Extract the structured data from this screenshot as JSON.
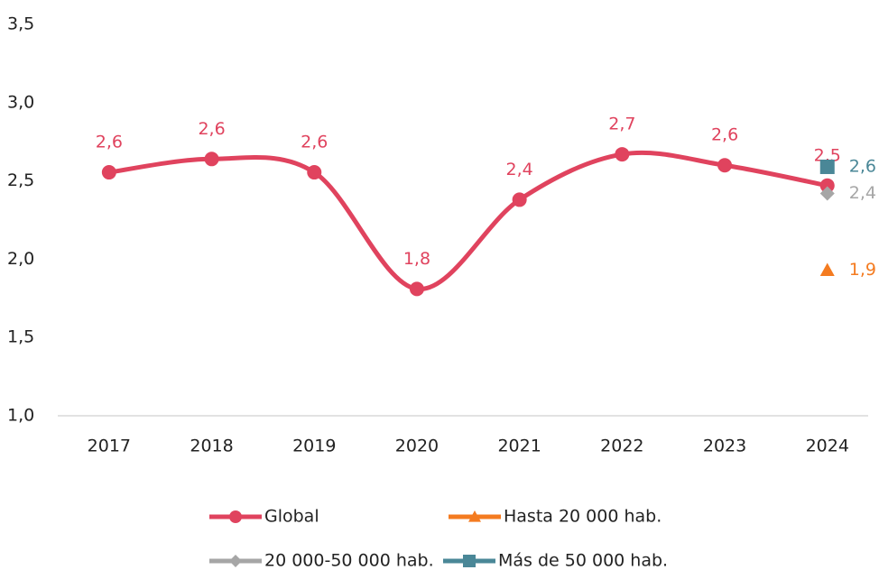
{
  "chart_data": {
    "type": "line",
    "categories": [
      "2017",
      "2018",
      "2019",
      "2020",
      "2021",
      "2022",
      "2023",
      "2024"
    ],
    "series": [
      {
        "name": "Global",
        "color": "#e0435e",
        "marker": "circle",
        "values": [
          2.555,
          2.64,
          2.555,
          1.81,
          2.38,
          2.67,
          2.6,
          2.47
        ],
        "value_labels": [
          "2,6",
          "2,6",
          "2,6",
          "1,8",
          "2,4",
          "2,7",
          "2,6",
          "2,5"
        ]
      },
      {
        "name": "Hasta 20 000 hab.",
        "color": "#f47b20",
        "marker": "triangle",
        "values": [
          null,
          null,
          null,
          null,
          null,
          null,
          null,
          1.93
        ],
        "value_labels": [
          null,
          null,
          null,
          null,
          null,
          null,
          null,
          "1,9"
        ]
      },
      {
        "name": "20 000-50 000 hab.",
        "color": "#a6a6a6",
        "marker": "diamond",
        "values": [
          null,
          null,
          null,
          null,
          null,
          null,
          null,
          2.42
        ],
        "value_labels": [
          null,
          null,
          null,
          null,
          null,
          null,
          null,
          "2,4"
        ]
      },
      {
        "name": "Más de 50 000 hab.",
        "color": "#4a8797",
        "marker": "square",
        "values": [
          null,
          null,
          null,
          null,
          null,
          null,
          null,
          2.59
        ],
        "value_labels": [
          null,
          null,
          null,
          null,
          null,
          null,
          null,
          "2,6"
        ]
      }
    ],
    "ylim": [
      1.0,
      3.5
    ],
    "yticks": [
      {
        "value": 1.0,
        "label": "1,0"
      },
      {
        "value": 1.5,
        "label": "1,5"
      },
      {
        "value": 2.0,
        "label": "2,0"
      },
      {
        "value": 2.5,
        "label": "2,5"
      },
      {
        "value": 3.0,
        "label": "3,0"
      },
      {
        "value": 3.5,
        "label": "3,5"
      }
    ],
    "legend": "bottom"
  }
}
